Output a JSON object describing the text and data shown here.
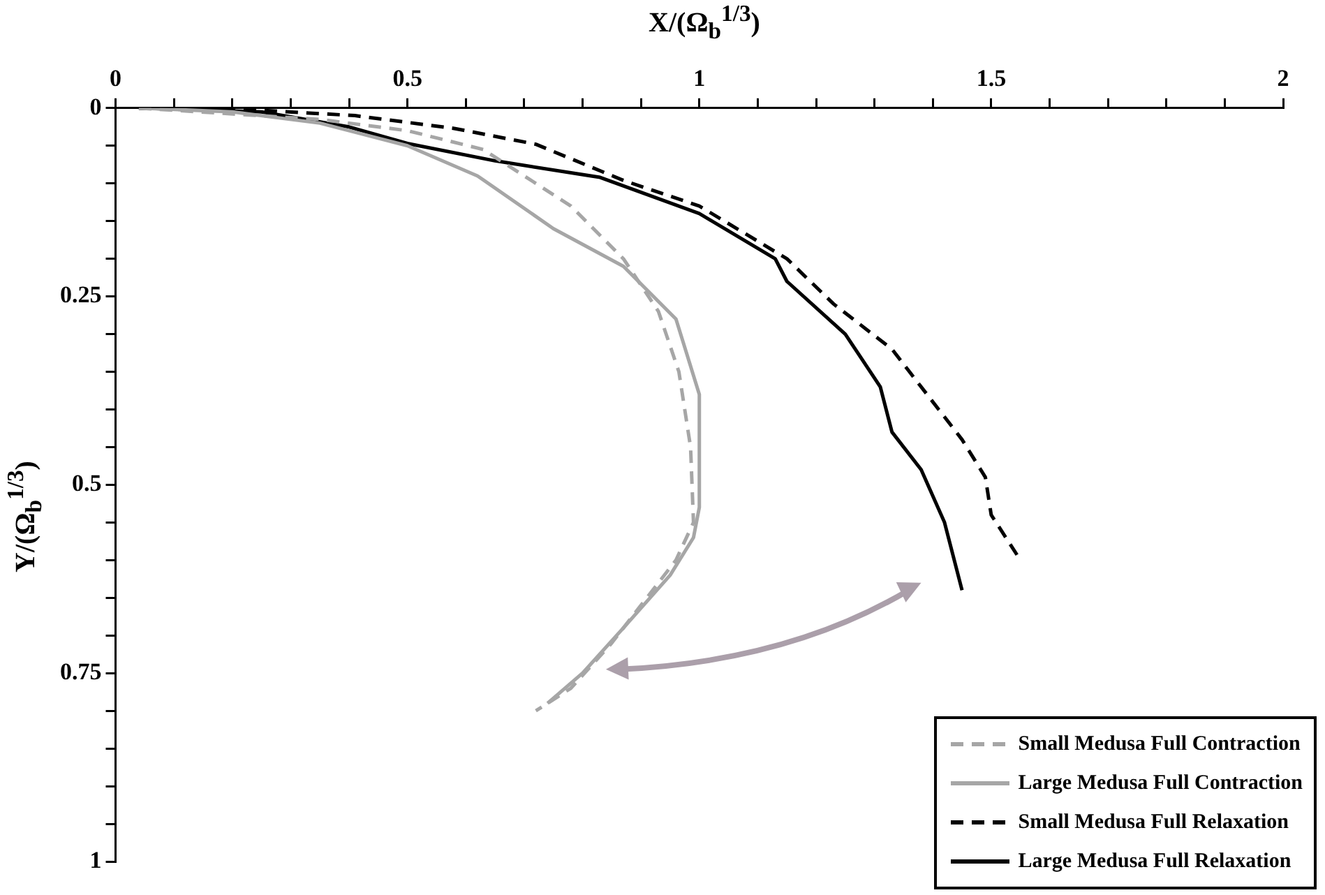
{
  "chart_data": {
    "type": "line",
    "xlabel": "X/(Ω$_{b}$$^{1/3}$)",
    "ylabel": "Y/(Ω$_{b}$$^{1/3}$)",
    "xlim": [
      0,
      2
    ],
    "ylim": [
      1,
      0
    ],
    "xticks": [
      0,
      {
        "value": 0.1,
        "label": null
      },
      {
        "value": 0.2,
        "label": null
      },
      {
        "value": 0.3,
        "label": null
      },
      {
        "value": 0.4,
        "label": null
      },
      0.5,
      {
        "value": 0.6,
        "label": null
      },
      {
        "value": 0.7,
        "label": null
      },
      {
        "value": 0.8,
        "label": null
      },
      {
        "value": 0.9,
        "label": null
      },
      1,
      {
        "value": 1.1,
        "label": null
      },
      {
        "value": 1.2,
        "label": null
      },
      {
        "value": 1.3,
        "label": null
      },
      {
        "value": 1.4,
        "label": null
      },
      1.5,
      {
        "value": 1.6,
        "label": null
      },
      {
        "value": 1.7,
        "label": null
      },
      {
        "value": 1.8,
        "label": null
      },
      {
        "value": 1.9,
        "label": null
      },
      2
    ],
    "yticks": [
      0,
      {
        "value": 0.05,
        "label": null
      },
      {
        "value": 0.1,
        "label": null
      },
      {
        "value": 0.15,
        "label": null
      },
      {
        "value": 0.2,
        "label": null
      },
      0.25,
      {
        "value": 0.3,
        "label": null
      },
      {
        "value": 0.35,
        "label": null
      },
      {
        "value": 0.4,
        "label": null
      },
      {
        "value": 0.45,
        "label": null
      },
      0.5,
      {
        "value": 0.55,
        "label": null
      },
      {
        "value": 0.6,
        "label": null
      },
      {
        "value": 0.65,
        "label": null
      },
      {
        "value": 0.7,
        "label": null
      },
      0.75,
      {
        "value": 0.8,
        "label": null
      },
      {
        "value": 0.85,
        "label": null
      },
      {
        "value": 0.9,
        "label": null
      },
      {
        "value": 0.95,
        "label": null
      },
      1
    ],
    "grid": false,
    "legend": "bottom right",
    "marker": "none",
    "series": [
      {
        "name": "Small Medusa Full Contraction",
        "color": "#a6a6a6",
        "line_style": "dashed",
        "x": [
          0.04,
          0.35,
          0.5,
          0.63,
          0.78,
          0.87,
          0.93,
          0.965,
          0.985,
          0.99,
          0.96,
          0.9,
          0.85,
          0.78,
          0.72
        ],
        "values": [
          0,
          0.015,
          0.03,
          0.055,
          0.13,
          0.2,
          0.27,
          0.35,
          0.45,
          0.55,
          0.6,
          0.66,
          0.71,
          0.77,
          0.8
        ]
      },
      {
        "name": "Large Medusa Full Contraction",
        "color": "#a6a6a6",
        "line_style": "solid",
        "x": [
          0.04,
          0.2,
          0.35,
          0.5,
          0.62,
          0.75,
          0.87,
          0.96,
          1.0,
          1.0,
          0.99,
          0.95,
          0.87,
          0.8,
          0.74
        ],
        "values": [
          0,
          0.005,
          0.02,
          0.05,
          0.09,
          0.16,
          0.21,
          0.28,
          0.38,
          0.53,
          0.57,
          0.62,
          0.69,
          0.75,
          0.79
        ]
      },
      {
        "name": "Small Medusa Full Relaxation",
        "color": "#000000",
        "line_style": "dashed",
        "x": [
          0.04,
          0.25,
          0.41,
          0.58,
          0.72,
          0.87,
          1.0,
          1.15,
          1.23,
          1.33,
          1.36,
          1.41,
          1.45,
          1.49,
          1.5,
          1.55
        ],
        "values": [
          0,
          0.003,
          0.01,
          0.027,
          0.048,
          0.096,
          0.13,
          0.2,
          0.26,
          0.32,
          0.35,
          0.4,
          0.44,
          0.49,
          0.54,
          0.6
        ]
      },
      {
        "name": "Large Medusa Full Relaxation",
        "color": "#000000",
        "line_style": "solid",
        "x": [
          0.04,
          0.25,
          0.4,
          0.5,
          0.65,
          0.83,
          1.0,
          1.13,
          1.15,
          1.25,
          1.31,
          1.33,
          1.38,
          1.42,
          1.45
        ],
        "values": [
          0,
          0.005,
          0.025,
          0.047,
          0.07,
          0.092,
          0.14,
          0.2,
          0.23,
          0.3,
          0.37,
          0.43,
          0.48,
          0.55,
          0.64
        ]
      }
    ]
  }
}
